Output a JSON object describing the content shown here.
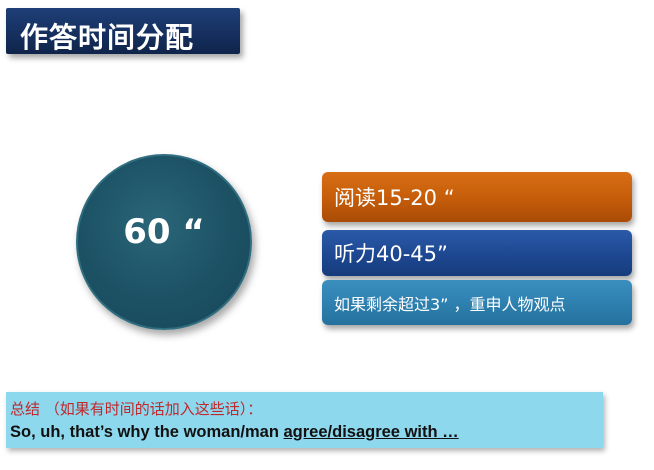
{
  "slide": {
    "title": "作答时间分配",
    "circle_label": "60 “",
    "boxes": {
      "reading": "阅读15-20 “",
      "listening": "听力40-45”",
      "tip": "如果剩余超过3” ，重申人物观点"
    },
    "summary": {
      "note": "总结 （如果有时间的话加入这些话）：",
      "line_plain": "So, uh, that’s why the woman/man ",
      "line_underlined": "agree/disagree with …"
    }
  }
}
